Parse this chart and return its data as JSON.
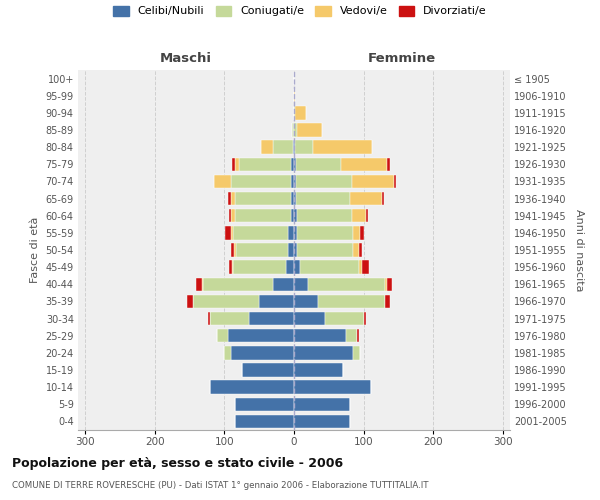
{
  "age_groups": [
    "0-4",
    "5-9",
    "10-14",
    "15-19",
    "20-24",
    "25-29",
    "30-34",
    "35-39",
    "40-44",
    "45-49",
    "50-54",
    "55-59",
    "60-64",
    "65-69",
    "70-74",
    "75-79",
    "80-84",
    "85-89",
    "90-94",
    "95-99",
    "100+"
  ],
  "birth_years": [
    "2001-2005",
    "1996-2000",
    "1991-1995",
    "1986-1990",
    "1981-1985",
    "1976-1980",
    "1971-1975",
    "1966-1970",
    "1961-1965",
    "1956-1960",
    "1951-1955",
    "1946-1950",
    "1941-1945",
    "1936-1940",
    "1931-1935",
    "1926-1930",
    "1921-1925",
    "1916-1920",
    "1911-1915",
    "1906-1910",
    "≤ 1905"
  ],
  "males": {
    "celibi": [
      85,
      85,
      120,
      75,
      90,
      95,
      65,
      50,
      30,
      12,
      8,
      8,
      5,
      5,
      5,
      4,
      2,
      0,
      0,
      0,
      0
    ],
    "coniugati": [
      0,
      0,
      0,
      0,
      10,
      15,
      55,
      95,
      100,
      75,
      75,
      80,
      80,
      80,
      85,
      75,
      28,
      3,
      0,
      0,
      0
    ],
    "vedovi": [
      0,
      0,
      0,
      0,
      0,
      0,
      0,
      0,
      2,
      2,
      3,
      3,
      5,
      5,
      25,
      5,
      18,
      0,
      0,
      0,
      0
    ],
    "divorziati": [
      0,
      0,
      0,
      0,
      0,
      0,
      3,
      8,
      8,
      5,
      5,
      8,
      3,
      5,
      0,
      5,
      0,
      0,
      0,
      0,
      0
    ]
  },
  "females": {
    "nubili": [
      80,
      80,
      110,
      70,
      85,
      75,
      45,
      35,
      20,
      8,
      5,
      5,
      5,
      3,
      3,
      3,
      2,
      0,
      0,
      0,
      0
    ],
    "coniugate": [
      0,
      0,
      0,
      0,
      10,
      15,
      55,
      95,
      110,
      85,
      80,
      80,
      78,
      78,
      80,
      65,
      25,
      5,
      2,
      0,
      0
    ],
    "vedove": [
      0,
      0,
      0,
      0,
      0,
      0,
      0,
      0,
      3,
      5,
      8,
      10,
      20,
      45,
      60,
      65,
      85,
      35,
      15,
      2,
      0
    ],
    "divorziate": [
      0,
      0,
      0,
      0,
      0,
      3,
      3,
      8,
      8,
      10,
      5,
      5,
      3,
      3,
      3,
      5,
      0,
      0,
      0,
      0,
      0
    ]
  },
  "colors": {
    "celibi_nubili": "#4472a8",
    "coniugati": "#c5d99a",
    "vedovi": "#f5c96a",
    "divorziati": "#cc1111"
  },
  "xlim": 310,
  "title": "Popolazione per età, sesso e stato civile - 2006",
  "subtitle": "COMUNE DI TERRE ROVERESCHE (PU) - Dati ISTAT 1° gennaio 2006 - Elaborazione TUTTITALIA.IT",
  "ylabel_left": "Fasce di età",
  "ylabel_right": "Anni di nascita",
  "xlabel_maschi": "Maschi",
  "xlabel_femmine": "Femmine",
  "legend_labels": [
    "Celibi/Nubili",
    "Coniugati/e",
    "Vedovi/e",
    "Divorziati/e"
  ],
  "bg_axes": "#efefef",
  "bg_fig": "#ffffff",
  "grid_color": "#d0d0d0"
}
